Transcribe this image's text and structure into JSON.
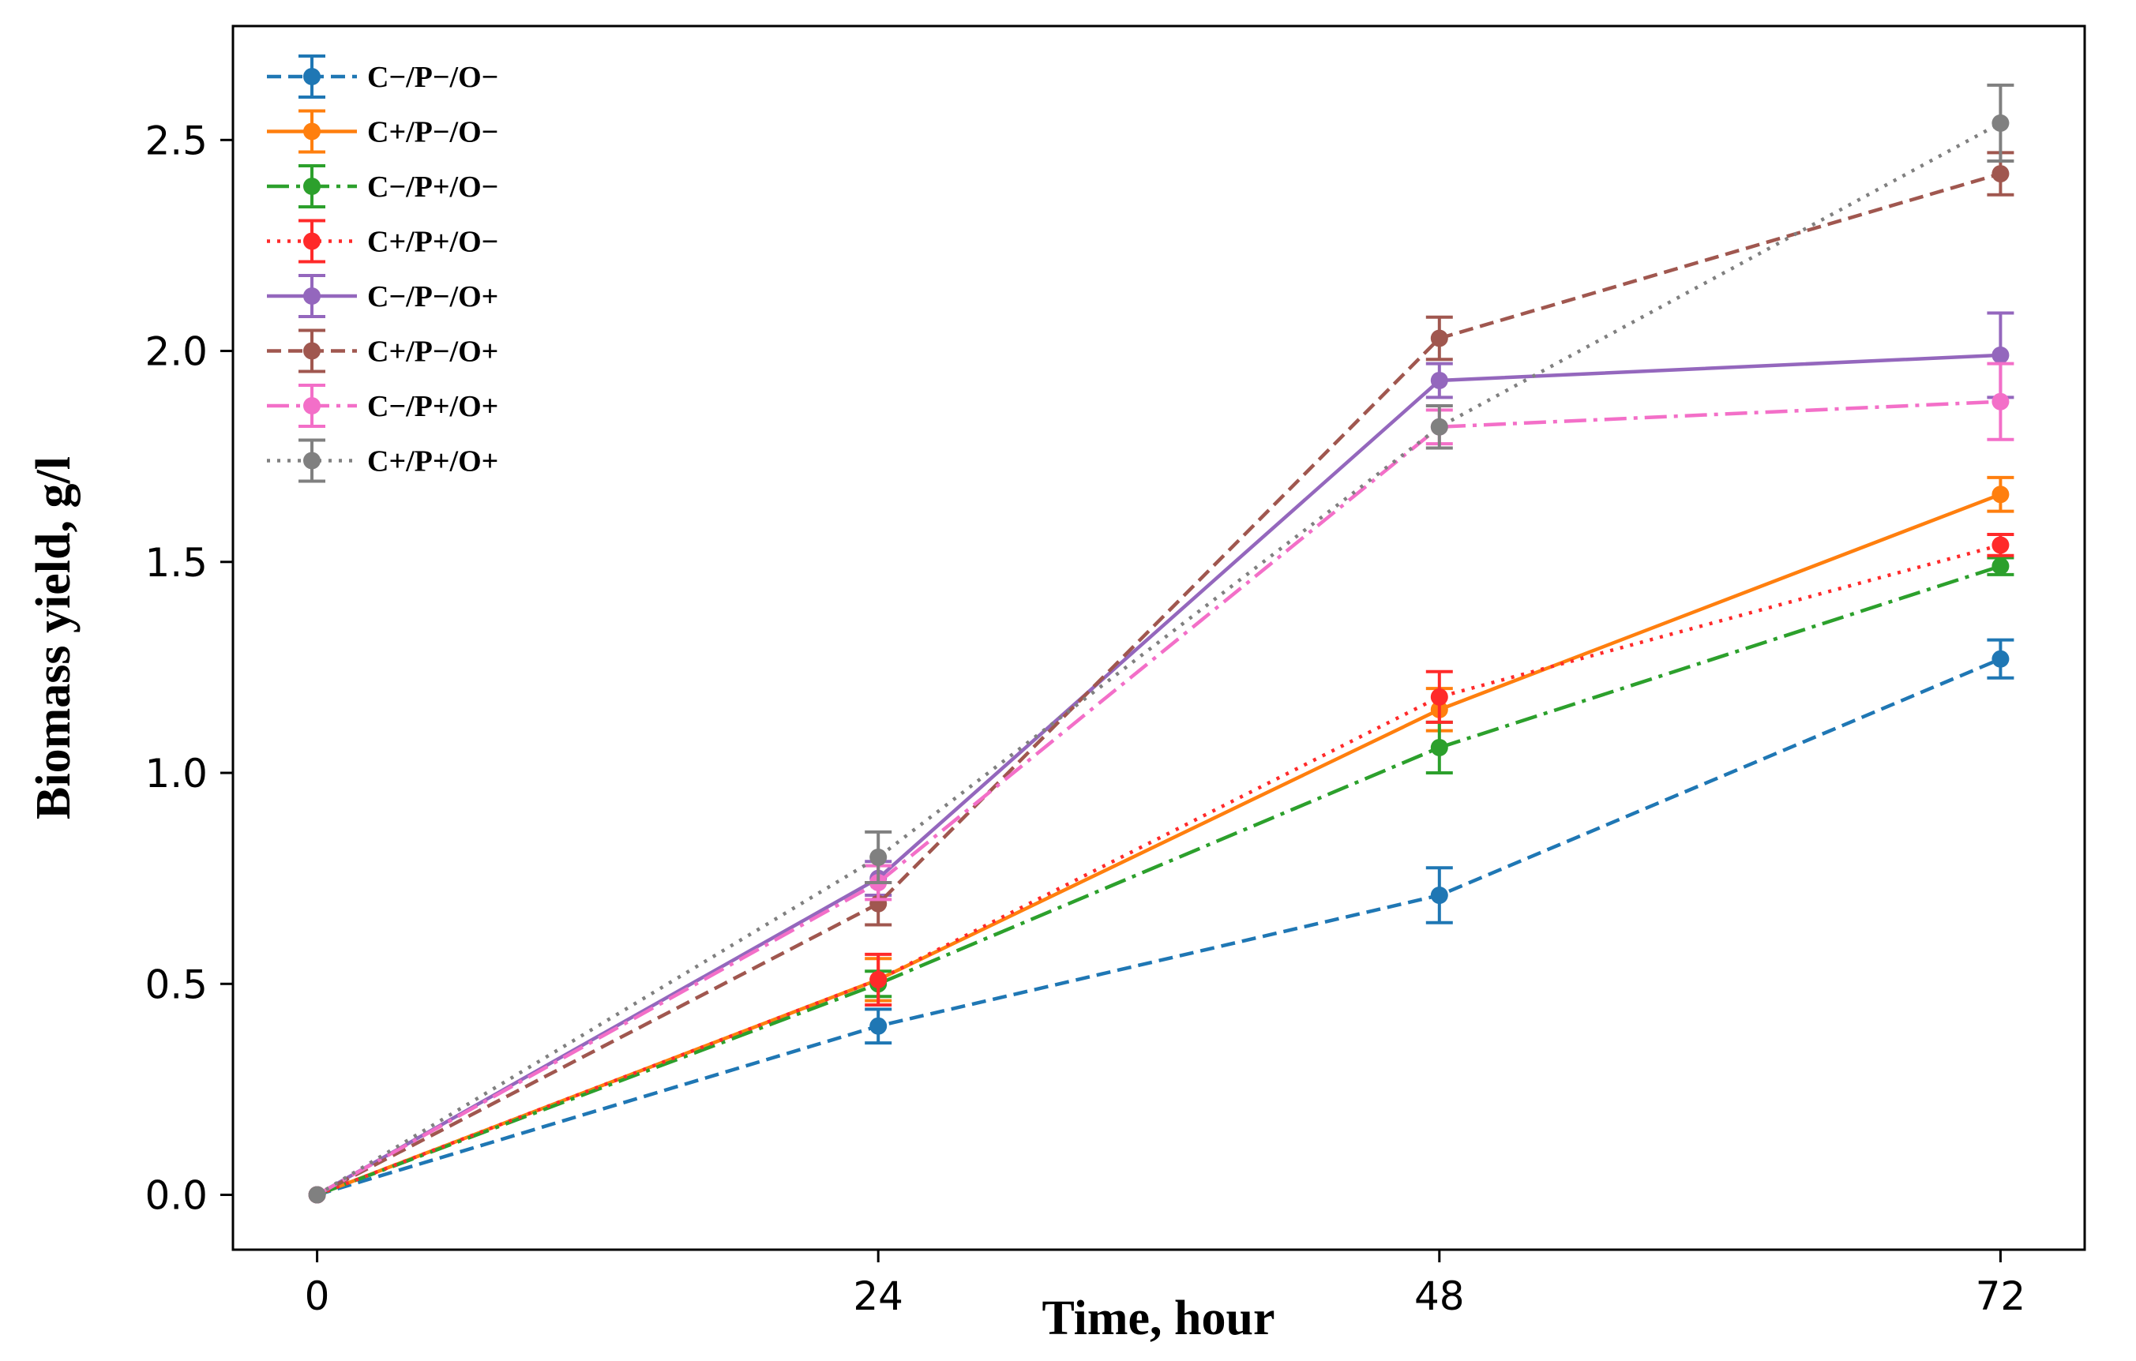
{
  "chart_data": {
    "type": "line",
    "title": "",
    "xlabel": "Time, hour",
    "ylabel": "Biomass yield, g/l",
    "x": [
      0,
      24,
      48,
      72
    ],
    "x_ticks": [
      "0",
      "24",
      "48",
      "72"
    ],
    "y_ticks": [
      "0.0",
      "0.5",
      "1.0",
      "1.5",
      "2.0",
      "2.5"
    ],
    "xlim": [
      -3.6,
      75.6
    ],
    "ylim": [
      -0.13,
      2.77
    ],
    "grid": false,
    "legend_position": "top-left",
    "series": [
      {
        "name": "C−/P−/O−",
        "color": "#1f77b4",
        "style": "dashed",
        "values": [
          0,
          0.4,
          0.71,
          1.27
        ],
        "errors": [
          0,
          0.04,
          0.065,
          0.045
        ]
      },
      {
        "name": "C+/P−/O−",
        "color": "#ff7f0e",
        "style": "solid",
        "values": [
          0,
          0.51,
          1.15,
          1.66
        ],
        "errors": [
          0,
          0.05,
          0.05,
          0.04
        ]
      },
      {
        "name": "C−/P+/O−",
        "color": "#2ca02c",
        "style": "dashdot",
        "values": [
          0,
          0.5,
          1.06,
          1.49
        ],
        "errors": [
          0,
          0.03,
          0.06,
          0.02
        ]
      },
      {
        "name": "C+/P+/O−",
        "color": "#ff2a2a",
        "style": "dotted",
        "values": [
          0,
          0.51,
          1.18,
          1.54
        ],
        "errors": [
          0,
          0.06,
          0.06,
          0.025
        ]
      },
      {
        "name": "C−/P−/O+",
        "color": "#9467bd",
        "style": "solid",
        "values": [
          0,
          0.75,
          1.93,
          1.99
        ],
        "errors": [
          0,
          0.04,
          0.04,
          0.1
        ]
      },
      {
        "name": "C+/P−/O+",
        "color": "#a0574f",
        "style": "dashed",
        "values": [
          0,
          0.69,
          2.03,
          2.42
        ],
        "errors": [
          0,
          0.05,
          0.05,
          0.05
        ]
      },
      {
        "name": "C−/P+/O+",
        "color": "#f36fc8",
        "style": "dashdot",
        "values": [
          0,
          0.74,
          1.82,
          1.88
        ],
        "errors": [
          0,
          0.04,
          0.04,
          0.09
        ]
      },
      {
        "name": "C+/P+/O+",
        "color": "#808080",
        "style": "dotted",
        "values": [
          0,
          0.8,
          1.82,
          2.54
        ],
        "errors": [
          0,
          0.06,
          0.05,
          0.09
        ]
      }
    ]
  }
}
